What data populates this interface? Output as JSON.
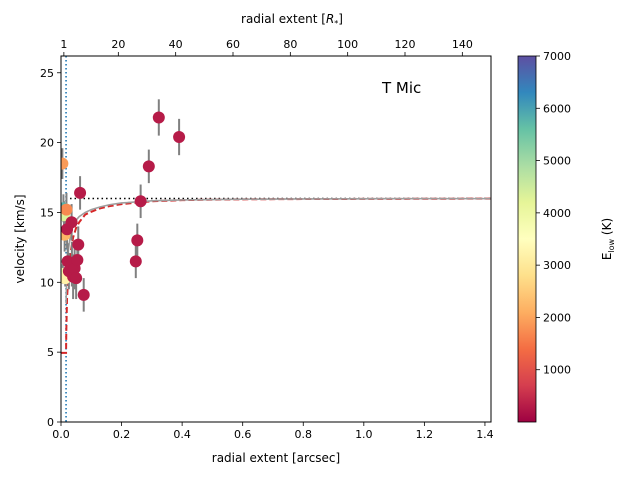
{
  "chart_data": {
    "type": "scatter",
    "annotation": "T Mic",
    "xlabel": "radial extent [arcsec]",
    "x2label": "radial extent [",
    "x2label_sym": "R",
    "x2label_sub": "*",
    "x2label_end": "]",
    "ylabel": "velocity [km/s]",
    "colorbar_label": "E",
    "colorbar_label_sub": "low",
    "colorbar_label_unit": " (K)",
    "xlim": [
      0,
      1.42
    ],
    "ylim": [
      0,
      26.2
    ],
    "x2lim": [
      0,
      150
    ],
    "clim": [
      0,
      7000
    ],
    "xticks": [
      0,
      0.2,
      0.4,
      0.6,
      0.8,
      1.0,
      1.2,
      1.4
    ],
    "xtick_labels": [
      "0.0",
      "0.2",
      "0.4",
      "0.6",
      "0.8",
      "1.0",
      "1.2",
      "1.4"
    ],
    "yticks": [
      0,
      5,
      10,
      15,
      20,
      25
    ],
    "ytick_labels": [
      "0",
      "5",
      "10",
      "15",
      "20",
      "25"
    ],
    "x2ticks": [
      1,
      20,
      40,
      60,
      80,
      100,
      120,
      140
    ],
    "x2tick_labels": [
      "1",
      "20",
      "40",
      "60",
      "80",
      "100",
      "120",
      "140"
    ],
    "cticks": [
      1000,
      2000,
      3000,
      4000,
      5000,
      6000,
      7000
    ],
    "ctick_labels": [
      "1000",
      "2000",
      "3000",
      "4000",
      "5000",
      "6000",
      "7000"
    ],
    "terminal_velocity": 16.0,
    "vertical_line_x": 0.0167,
    "points": [
      {
        "x": 0.0045,
        "y": 18.5,
        "err": 1.1,
        "elow": 1900
      },
      {
        "x": 0.008,
        "y": 15.3,
        "err": 1.0,
        "elow": 5800
      },
      {
        "x": 0.01,
        "y": 14.8,
        "err": 1.0,
        "elow": 4300
      },
      {
        "x": 0.012,
        "y": 13.4,
        "err": 1.2,
        "elow": 2200
      },
      {
        "x": 0.006,
        "y": 10.6,
        "err": 0.7,
        "elow": 3800
      },
      {
        "x": 0.014,
        "y": 10.3,
        "err": 0.6,
        "elow": 3200
      },
      {
        "x": 0.018,
        "y": 15.2,
        "err": 1.2,
        "elow": 1700
      },
      {
        "x": 0.02,
        "y": 13.8,
        "err": 1.4,
        "elow": 300
      },
      {
        "x": 0.022,
        "y": 11.5,
        "err": 1.3,
        "elow": 300
      },
      {
        "x": 0.026,
        "y": 10.8,
        "err": 1.3,
        "elow": 300
      },
      {
        "x": 0.035,
        "y": 14.3,
        "err": 1.3,
        "elow": 300
      },
      {
        "x": 0.036,
        "y": 11.3,
        "err": 1.6,
        "elow": 300
      },
      {
        "x": 0.04,
        "y": 10.4,
        "err": 1.6,
        "elow": 300
      },
      {
        "x": 0.045,
        "y": 11.0,
        "err": 1.5,
        "elow": 300
      },
      {
        "x": 0.05,
        "y": 10.3,
        "err": 1.5,
        "elow": 300
      },
      {
        "x": 0.054,
        "y": 11.6,
        "err": 1.3,
        "elow": 300
      },
      {
        "x": 0.057,
        "y": 12.7,
        "err": 1.3,
        "elow": 300
      },
      {
        "x": 0.063,
        "y": 16.4,
        "err": 1.2,
        "elow": 300
      },
      {
        "x": 0.075,
        "y": 9.1,
        "err": 1.2,
        "elow": 300
      },
      {
        "x": 0.247,
        "y": 11.5,
        "err": 1.2,
        "elow": 300
      },
      {
        "x": 0.252,
        "y": 13.0,
        "err": 1.2,
        "elow": 300
      },
      {
        "x": 0.263,
        "y": 15.8,
        "err": 1.2,
        "elow": 300
      },
      {
        "x": 0.29,
        "y": 18.3,
        "err": 1.2,
        "elow": 300
      },
      {
        "x": 0.323,
        "y": 21.8,
        "err": 1.3,
        "elow": 300
      },
      {
        "x": 0.39,
        "y": 20.4,
        "err": 1.3,
        "elow": 300
      }
    ],
    "model_curves": [
      {
        "name": "beta-law dashed",
        "style": "dashed",
        "color": "#d62728",
        "x": [
          0.0,
          0.0167,
          0.0175,
          0.02,
          0.025,
          0.03,
          0.04,
          0.05,
          0.06,
          0.08,
          0.1,
          0.13,
          0.16,
          0.2,
          0.25,
          0.3,
          0.4,
          0.5,
          0.6,
          0.8,
          1.0,
          1.2,
          1.42
        ],
        "y": [
          4.95,
          4.95,
          6.5,
          8.9,
          10.7,
          11.9,
          13.2,
          13.9,
          14.3,
          14.85,
          15.05,
          15.3,
          15.45,
          15.6,
          15.7,
          15.8,
          15.88,
          15.92,
          15.94,
          15.96,
          15.97,
          15.98,
          15.99
        ]
      },
      {
        "name": "beta-law solid",
        "style": "solid",
        "color": "#9e9e9e",
        "x": [
          0.0167,
          0.0185,
          0.022,
          0.025,
          0.03,
          0.04,
          0.05,
          0.06,
          0.08,
          0.1,
          0.13,
          0.16,
          0.2,
          0.3,
          0.4,
          0.6,
          0.8,
          1.0,
          1.2,
          1.42
        ],
        "y": [
          8.5,
          10.1,
          11.6,
          12.4,
          13.2,
          14.05,
          14.45,
          14.7,
          15.0,
          15.2,
          15.4,
          15.55,
          15.68,
          15.83,
          15.9,
          15.95,
          15.97,
          15.98,
          15.99,
          15.99
        ]
      }
    ],
    "colormap": [
      "#9e0142",
      "#d53e4f",
      "#f46d43",
      "#fdae61",
      "#fee08b",
      "#ffffbf",
      "#e6f598",
      "#abdda4",
      "#66c2a5",
      "#3288bd",
      "#5e4fa2"
    ],
    "colors": {
      "vline": "#1f77b4",
      "errorbar": "#808080",
      "hline": "#000000"
    }
  }
}
